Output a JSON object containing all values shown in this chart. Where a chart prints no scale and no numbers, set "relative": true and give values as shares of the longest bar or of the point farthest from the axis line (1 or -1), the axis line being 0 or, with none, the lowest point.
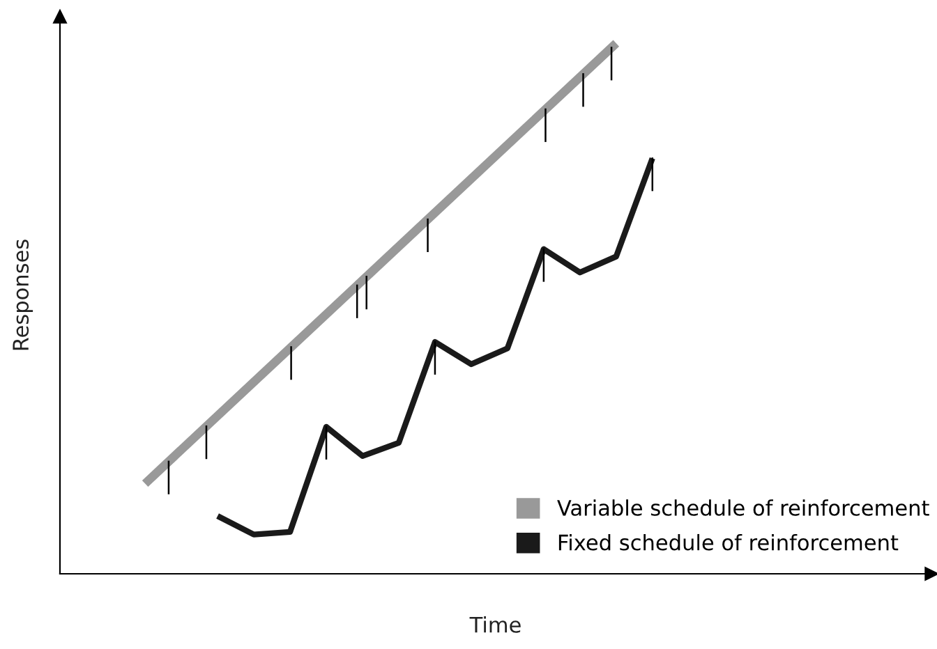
{
  "chart_data": {
    "type": "line",
    "relative": true,
    "xlabel": "Time",
    "ylabel": "Responses",
    "categories": [
      null,
      null,
      null,
      null,
      null,
      null,
      null,
      null,
      null,
      null,
      null,
      null,
      null,
      null,
      null
    ],
    "series": [
      {
        "name": "Variable schedule of reinforcement",
        "color": "#999999",
        "values": [
          0.17,
          null,
          null,
          null,
          null,
          null,
          null,
          null,
          null,
          null,
          null,
          null,
          null,
          1.0,
          null
        ]
      },
      {
        "name": "Fixed schedule of reinforcement",
        "color": "#1a1a1a",
        "values": [
          null,
          null,
          0.109,
          0.074,
          0.079,
          0.277,
          0.222,
          0.247,
          0.437,
          0.395,
          0.425,
          0.612,
          0.568,
          0.598,
          0.783
        ]
      }
    ],
    "legend": "bottom right",
    "marker": "none",
    "line_style": "solid"
  }
}
